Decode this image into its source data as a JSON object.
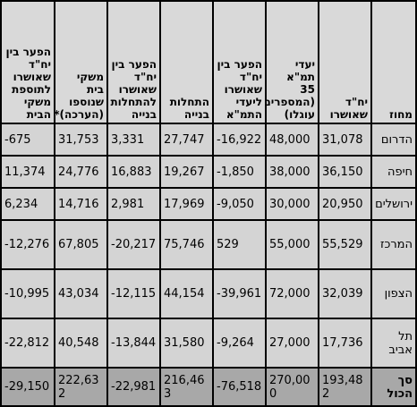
{
  "columns": [
    "מחוז",
    "יח\"ד שאושרו",
    "יעדי תמ\"א 35 (המספרים עוגלו)",
    "הפער בין יח\"ד שאושרו ליעדי התמ\"א",
    "התחלות בנייה",
    "הפער בין יח\"ד שאושרו להתחלות בנייה",
    "משקי בית שנוספו (הערכה)*",
    "הפער בין יח\"ד שאושרו לתוספת משקי הבית"
  ],
  "rows": [
    {
      "name": "הדרום",
      "values": [
        "31,078",
        "48,000",
        "-16,922",
        "27,747",
        "3,331",
        "31,753",
        "-675"
      ]
    },
    {
      "name": "חיפה",
      "values": [
        "36,150",
        "38,000",
        "-1,850",
        "19,267",
        "16,883",
        "24,776",
        "11,374"
      ]
    },
    {
      "name": "ירושלים",
      "values": [
        "20,950",
        "30,000",
        "-9,050",
        "17,969",
        "2,981",
        "14,716",
        "6,234"
      ]
    },
    {
      "name": "המרכז",
      "values": [
        "55,529",
        "55,000",
        "529",
        "75,746",
        "-20,217",
        "67,805",
        "-12,276"
      ]
    },
    {
      "name": "הצפון",
      "values": [
        "32,039",
        "72,000",
        "-39,961",
        "44,154",
        "-12,115",
        "43,034",
        "-10,995"
      ]
    },
    {
      "name": "תל אביב",
      "values": [
        "17,736",
        "27,000",
        "-9,264",
        "31,580",
        "-13,844",
        "40,548",
        "-22,812"
      ]
    }
  ],
  "total": {
    "name": "סך הכול",
    "values": [
      "193,482",
      "270,000",
      "-76,518",
      "216,463",
      "-22,981",
      "222,632",
      "-29,150"
    ]
  }
}
